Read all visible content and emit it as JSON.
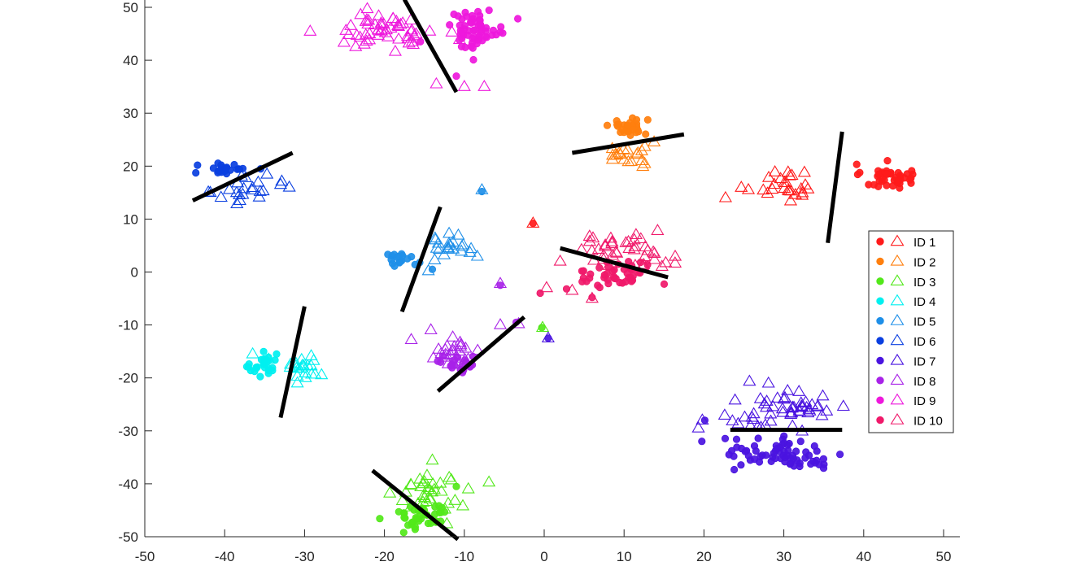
{
  "chart_data": {
    "type": "scatter",
    "title": "",
    "xlabel": "",
    "ylabel": "",
    "xlim": [
      -50,
      50
    ],
    "ylim": [
      -50,
      50
    ],
    "xticks": [
      "-50",
      "-40",
      "-30",
      "-20",
      "-10",
      "0",
      "10",
      "20",
      "30",
      "40",
      "50"
    ],
    "yticks": [
      "50",
      "40",
      "30",
      "20",
      "10",
      "0",
      "-10",
      "-20",
      "-30",
      "-40",
      "-50"
    ],
    "grid": false,
    "legend_position": "right",
    "marker_legend": {
      "filled": "circle",
      "hollow": "triangle"
    },
    "series": [
      {
        "name": "ID 1",
        "color": "#ff1a1a",
        "dots": {
          "cx": 43,
          "cy": 18,
          "sx": 1.6,
          "sy": 1.2,
          "n": 42
        },
        "tris": {
          "cx": 30,
          "cy": 16.5,
          "sx": 2.5,
          "sy": 1.6,
          "n": 26
        }
      },
      {
        "name": "ID 2",
        "color": "#ff7f0e",
        "dots": {
          "cx": 10.5,
          "cy": 27.5,
          "sx": 1.2,
          "sy": 0.8,
          "n": 32
        },
        "tris": {
          "cx": 10.5,
          "cy": 22,
          "sx": 1.6,
          "sy": 1.5,
          "n": 20
        }
      },
      {
        "name": "ID 3",
        "color": "#52e81a",
        "dots": {
          "cx": -15.5,
          "cy": -46,
          "sx": 1.8,
          "sy": 1.4,
          "n": 38
        },
        "tris": {
          "cx": -14,
          "cy": -41.5,
          "sx": 2.2,
          "sy": 2.3,
          "n": 34
        }
      },
      {
        "name": "ID 4",
        "color": "#00f0f0",
        "dots": {
          "cx": -35,
          "cy": -18,
          "sx": 0.9,
          "sy": 1.1,
          "n": 26
        },
        "tris": {
          "cx": -30,
          "cy": -18,
          "sx": 1.2,
          "sy": 1.4,
          "n": 22
        }
      },
      {
        "name": "ID 5",
        "color": "#1e8fe8",
        "dots": {
          "cx": -18,
          "cy": 2.5,
          "sx": 1.1,
          "sy": 0.7,
          "n": 18
        },
        "tris": {
          "cx": -11.5,
          "cy": 5,
          "sx": 1.5,
          "sy": 1.2,
          "n": 22
        }
      },
      {
        "name": "ID 6",
        "color": "#0a3fe0",
        "dots": {
          "cx": -40,
          "cy": 19.5,
          "sx": 1.4,
          "sy": 0.9,
          "n": 24
        },
        "tris": {
          "cx": -37,
          "cy": 15.5,
          "sx": 2.0,
          "sy": 1.5,
          "n": 22
        }
      },
      {
        "name": "ID 7",
        "color": "#4a14e0",
        "dots": {
          "cx": 30,
          "cy": -34.5,
          "sx": 4.0,
          "sy": 1.6,
          "n": 70
        },
        "tris": {
          "cx": 30,
          "cy": -26,
          "sx": 4.0,
          "sy": 1.9,
          "n": 54
        }
      },
      {
        "name": "ID 8",
        "color": "#a822e8",
        "dots": {
          "cx": -10.5,
          "cy": -17.5,
          "sx": 1.2,
          "sy": 0.9,
          "n": 20
        },
        "tris": {
          "cx": -11.5,
          "cy": -14.5,
          "sx": 1.9,
          "sy": 1.6,
          "n": 26
        }
      },
      {
        "name": "ID 9",
        "color": "#ee18dc",
        "dots": {
          "cx": -8.5,
          "cy": 46,
          "sx": 1.8,
          "sy": 1.8,
          "n": 60
        },
        "tris": {
          "cx": -20,
          "cy": 45.5,
          "sx": 3.2,
          "sy": 1.8,
          "n": 54
        }
      },
      {
        "name": "ID 10",
        "color": "#f0196a",
        "dots": {
          "cx": 9,
          "cy": -0.5,
          "sx": 2.6,
          "sy": 1.5,
          "n": 42
        },
        "tris": {
          "cx": 10,
          "cy": 4,
          "sx": 3.0,
          "sy": 1.5,
          "n": 40
        }
      }
    ],
    "extra_points": [
      {
        "marker": "circle",
        "color": "#52e81a",
        "x": -11,
        "y": -40.5
      },
      {
        "marker": "triangle",
        "color": "#52e81a",
        "x": -9.5,
        "y": -41
      },
      {
        "marker": "circle",
        "color": "#52e81a",
        "x": -0.3,
        "y": -10.5
      },
      {
        "marker": "triangle",
        "color": "#52e81a",
        "x": -0.2,
        "y": -10.5
      },
      {
        "marker": "circle",
        "color": "#00f0f0",
        "x": -33.5,
        "y": -15.5
      },
      {
        "marker": "triangle",
        "color": "#00f0f0",
        "x": -34.5,
        "y": -16.5
      },
      {
        "marker": "triangle",
        "color": "#00f0f0",
        "x": -36.5,
        "y": -15.5
      },
      {
        "marker": "circle",
        "color": "#1e8fe8",
        "x": -7.8,
        "y": 15.2
      },
      {
        "marker": "triangle",
        "color": "#1e8fe8",
        "x": -7.8,
        "y": 15.5
      },
      {
        "marker": "circle",
        "color": "#1e8fe8",
        "x": -14,
        "y": 0.5
      },
      {
        "marker": "triangle",
        "color": "#1e8fe8",
        "x": -14.5,
        "y": 0.2
      },
      {
        "marker": "triangle",
        "color": "#0a3fe0",
        "x": -33,
        "y": 16.5
      },
      {
        "marker": "circle",
        "color": "#0a3fe0",
        "x": -35.5,
        "y": 19.5
      },
      {
        "marker": "circle",
        "color": "#4a14e0",
        "x": 20.1,
        "y": -28
      },
      {
        "marker": "triangle",
        "color": "#4a14e0",
        "x": 19.8,
        "y": -28
      },
      {
        "marker": "triangle",
        "color": "#4a14e0",
        "x": 19.3,
        "y": -29.5
      },
      {
        "marker": "circle",
        "color": "#4a14e0",
        "x": 0.5,
        "y": -12.5
      },
      {
        "marker": "triangle",
        "color": "#4a14e0",
        "x": 0.5,
        "y": -12.5
      },
      {
        "marker": "triangle",
        "color": "#a822e8",
        "x": -5.5,
        "y": -10
      },
      {
        "marker": "circle",
        "color": "#a822e8",
        "x": -3.5,
        "y": -9.5
      },
      {
        "marker": "triangle",
        "color": "#a822e8",
        "x": -3.2,
        "y": -9.8
      },
      {
        "marker": "circle",
        "color": "#a822e8",
        "x": -5.5,
        "y": -2.5
      },
      {
        "marker": "triangle",
        "color": "#a822e8",
        "x": -5.5,
        "y": -2.2
      },
      {
        "marker": "circle",
        "color": "#ff1a1a",
        "x": -1.4,
        "y": 9.2
      },
      {
        "marker": "triangle",
        "color": "#ff1a1a",
        "x": -1.4,
        "y": 9.2
      },
      {
        "marker": "triangle",
        "color": "#ff1a1a",
        "x": 22.7,
        "y": 14
      },
      {
        "marker": "triangle",
        "color": "#ee18dc",
        "x": -13.5,
        "y": 35.5
      },
      {
        "marker": "circle",
        "color": "#ee18dc",
        "x": -11,
        "y": 37
      },
      {
        "marker": "triangle",
        "color": "#ee18dc",
        "x": -10,
        "y": 35
      },
      {
        "marker": "triangle",
        "color": "#ee18dc",
        "x": -7.5,
        "y": 35
      },
      {
        "marker": "circle",
        "color": "#ee18dc",
        "x": -15.5,
        "y": 43.5
      },
      {
        "marker": "triangle",
        "color": "#ee18dc",
        "x": -16.5,
        "y": 43.5
      },
      {
        "marker": "circle",
        "color": "#f0196a",
        "x": -0.5,
        "y": -4
      },
      {
        "marker": "triangle",
        "color": "#f0196a",
        "x": 0.3,
        "y": -3
      },
      {
        "marker": "triangle",
        "color": "#f0196a",
        "x": 3.5,
        "y": -3.5
      },
      {
        "marker": "circle",
        "color": "#f0196a",
        "x": 2.8,
        "y": -3.2
      },
      {
        "marker": "triangle",
        "color": "#f0196a",
        "x": 2,
        "y": 2
      },
      {
        "marker": "triangle",
        "color": "#f0196a",
        "x": 6,
        "y": -5
      },
      {
        "marker": "circle",
        "color": "#f0196a",
        "x": 6,
        "y": -4.8
      }
    ],
    "lines": [
      {
        "x1": -11,
        "y1": 34,
        "x2": -17.5,
        "y2": 51.5
      },
      {
        "x1": 3.5,
        "y1": 22.5,
        "x2": 17.5,
        "y2": 26
      },
      {
        "x1": 35.5,
        "y1": 5.5,
        "x2": 37.3,
        "y2": 26.5
      },
      {
        "x1": -44,
        "y1": 13.5,
        "x2": -31.5,
        "y2": 22.5
      },
      {
        "x1": -17.8,
        "y1": -7.5,
        "x2": -13,
        "y2": 12.3
      },
      {
        "x1": 2,
        "y1": 4.5,
        "x2": 15.5,
        "y2": -1
      },
      {
        "x1": -33,
        "y1": -27.5,
        "x2": -30,
        "y2": -6.5
      },
      {
        "x1": -13.3,
        "y1": -22.5,
        "x2": -2.5,
        "y2": -8.5
      },
      {
        "x1": 23.3,
        "y1": -29.8,
        "x2": 37.3,
        "y2": -29.8
      },
      {
        "x1": -21.5,
        "y1": -37.5,
        "x2": -10.8,
        "y2": -50.5
      }
    ]
  }
}
